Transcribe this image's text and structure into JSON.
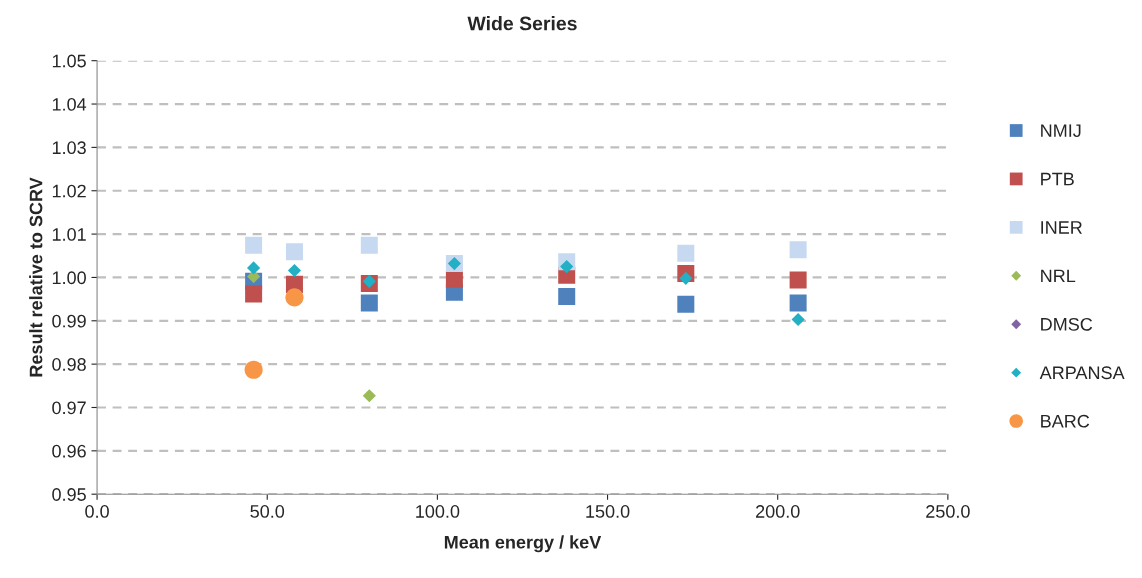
{
  "chart_data": {
    "type": "scatter",
    "title": "Wide Series",
    "xlabel": "Mean energy / keV",
    "ylabel": "Result relative to SCRV",
    "x": [
      46,
      58,
      80,
      105,
      138,
      173,
      206
    ],
    "series": [
      {
        "name": "NMIJ",
        "color": "#4f81bd",
        "marker": "square",
        "values": [
          0.9991,
          null,
          0.9941,
          0.9966,
          0.9956,
          0.9938,
          0.9941
        ]
      },
      {
        "name": "PTB",
        "color": "#c0504d",
        "marker": "square",
        "values": [
          0.9962,
          0.9984,
          0.9986,
          0.9996,
          1.0005,
          1.0009,
          0.9994
        ]
      },
      {
        "name": "INER",
        "color": "#c6d9f0",
        "marker": "square",
        "values": [
          1.0074,
          1.0059,
          1.0074,
          1.0032,
          1.0036,
          1.0056,
          1.0064
        ]
      },
      {
        "name": "NRL",
        "color": "#9bbb59",
        "marker": "diamond",
        "values": [
          1.0002,
          null,
          0.9727,
          null,
          null,
          null,
          null
        ]
      },
      {
        "name": "DMSC",
        "color": "#8064a2",
        "marker": "diamond",
        "values": [
          null,
          null,
          null,
          null,
          null,
          null,
          null
        ]
      },
      {
        "name": "ARPANSA",
        "color": "#23afc4",
        "marker": "diamond",
        "values": [
          1.0022,
          1.0016,
          0.9991,
          1.0032,
          1.0025,
          0.9998,
          0.9903
        ]
      },
      {
        "name": "BARC",
        "color": "#f79646",
        "marker": "circle",
        "values": [
          0.9787,
          0.9954,
          null,
          null,
          null,
          null,
          null
        ]
      }
    ],
    "xlim": [
      0,
      250
    ],
    "xticks": [
      {
        "value": 0,
        "label": "0.0"
      },
      {
        "value": 50,
        "label": "50.0"
      },
      {
        "value": 100,
        "label": "100.0"
      },
      {
        "value": 150,
        "label": "150.0"
      },
      {
        "value": 200,
        "label": "200.0"
      },
      {
        "value": 250,
        "label": "250.0"
      }
    ],
    "ylim": [
      0.95,
      1.05
    ],
    "yticks": [
      {
        "value": 0.95,
        "label": "0.95"
      },
      {
        "value": 0.96,
        "label": "0.96"
      },
      {
        "value": 0.97,
        "label": "0.97"
      },
      {
        "value": 0.98,
        "label": "0.98"
      },
      {
        "value": 0.99,
        "label": "0.99"
      },
      {
        "value": 1.0,
        "label": "1.00"
      },
      {
        "value": 1.01,
        "label": "1.01"
      },
      {
        "value": 1.02,
        "label": "1.02"
      },
      {
        "value": 1.03,
        "label": "1.03"
      },
      {
        "value": 1.04,
        "label": "1.04"
      },
      {
        "value": 1.05,
        "label": "1.05"
      }
    ],
    "grid": "y",
    "legend": "right"
  }
}
